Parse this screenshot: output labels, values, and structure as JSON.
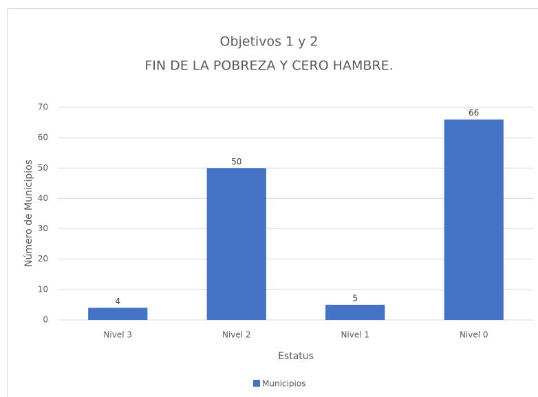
{
  "chart_data": {
    "type": "bar",
    "title": "Objetivos 1 y 2",
    "subtitle": "FIN DE LA POBREZA Y CERO HAMBRE.",
    "x_label": "Estatus",
    "y_label": "Número de Municipios",
    "categories": [
      "Nivel 3",
      "Nivel 2",
      "Nivel 1",
      "Nivel 0"
    ],
    "series": [
      {
        "name": "Municipios",
        "color": "#4472c4",
        "values": [
          4,
          50,
          5,
          66
        ]
      }
    ],
    "ylim": [
      0,
      70
    ],
    "yticks": [
      0,
      10,
      20,
      30,
      40,
      50,
      60,
      70
    ],
    "grid": true,
    "legend": "bottom"
  }
}
